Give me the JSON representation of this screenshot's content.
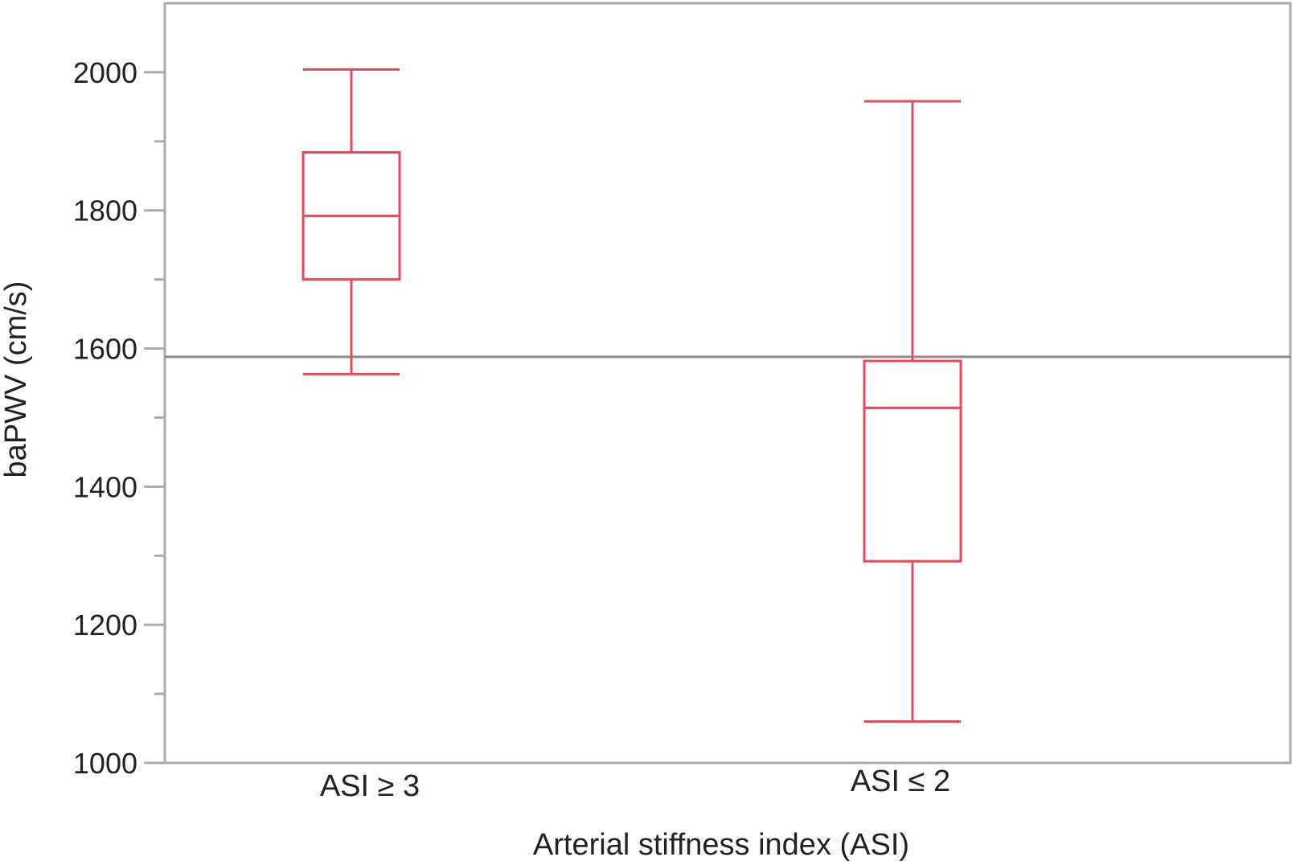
{
  "chart_data": {
    "type": "box",
    "xlabel": "Arterial stiffness index (ASI)",
    "ylabel": "baPWV (cm/s)",
    "ylim": [
      1000,
      2100
    ],
    "yticks": [
      1000,
      1200,
      1400,
      1600,
      1800,
      2000
    ],
    "yticks_minor": [
      1100,
      1300,
      1500,
      1700,
      1900
    ],
    "categories": [
      "ASI ≥ 3",
      "ASI ≤ 2"
    ],
    "boxes": [
      {
        "category": "ASI ≥ 3",
        "whisker_low": 1563,
        "q1": 1700,
        "median": 1792,
        "q3": 1884,
        "whisker_high": 2004
      },
      {
        "category": "ASI ≤ 2",
        "whisker_low": 1060,
        "q1": 1292,
        "median": 1514,
        "q3": 1582,
        "whisker_high": 1958
      }
    ],
    "reference_line": {
      "y": 1588
    },
    "colors": {
      "box": "#e8485a",
      "frame": "#aaaaaa",
      "reference": "#8c8c8c"
    }
  }
}
